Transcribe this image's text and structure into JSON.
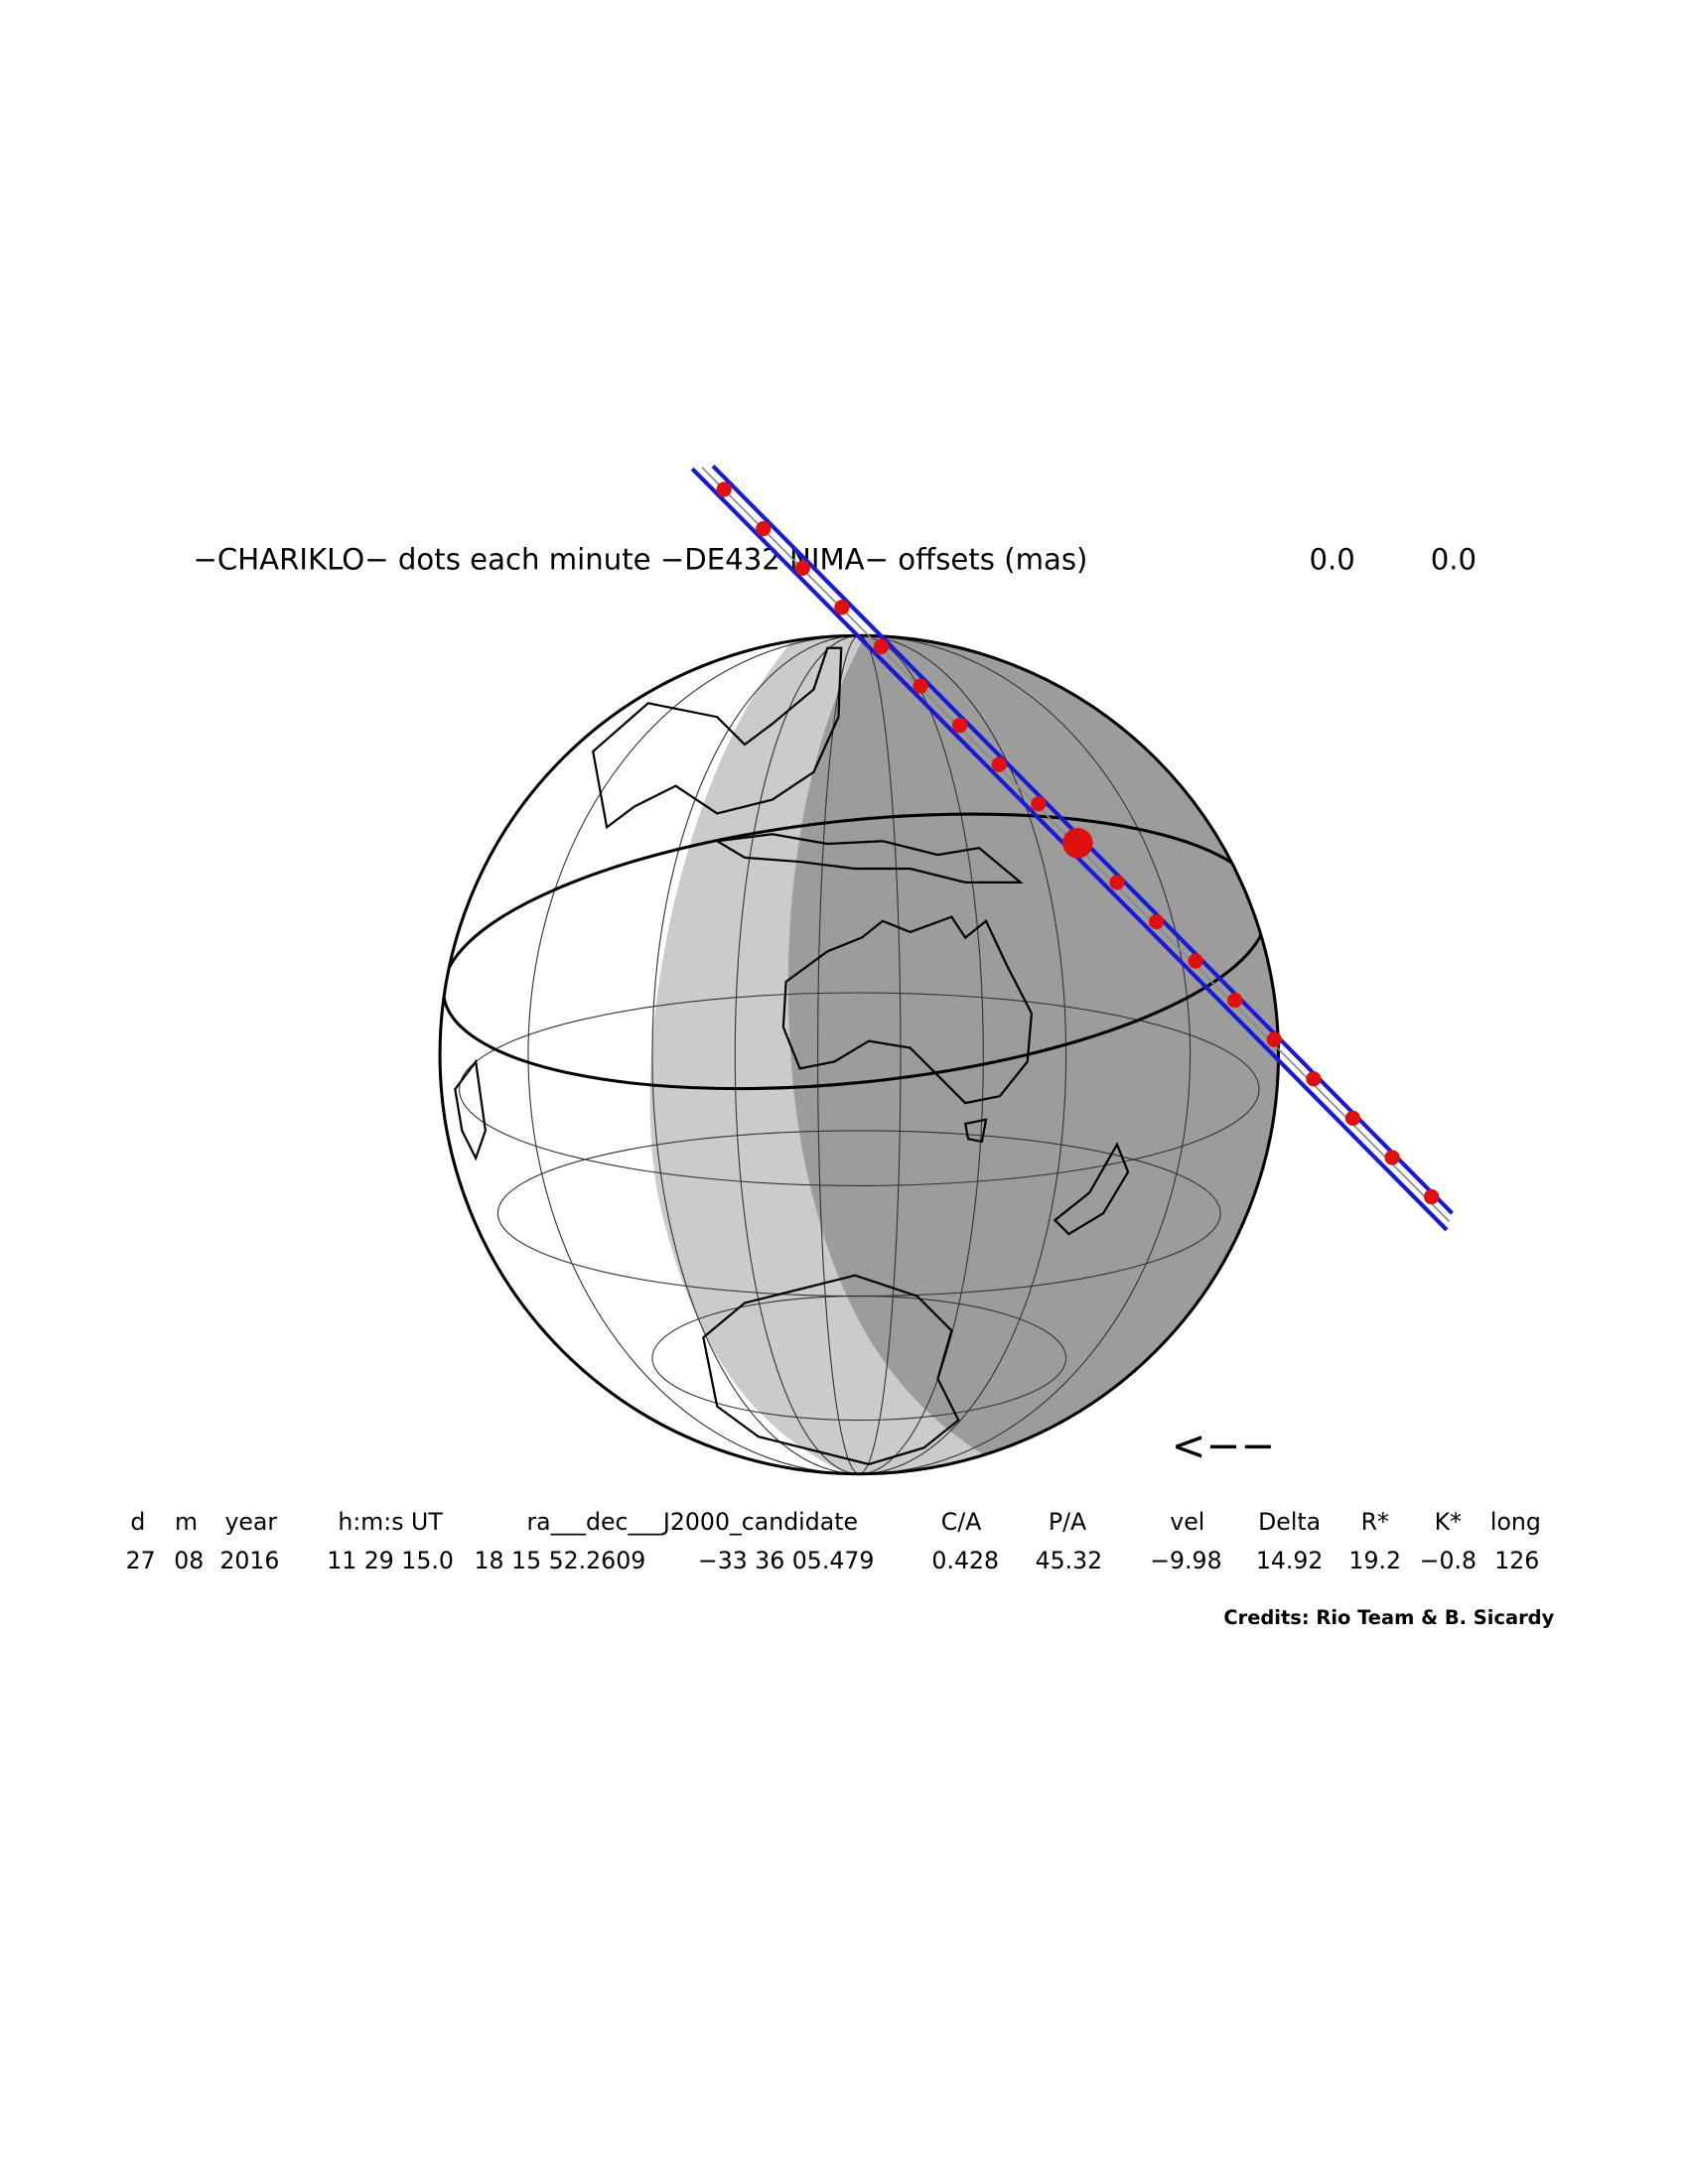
{
  "title": "−CHARIKLO− dots each minute −DE432 NIMA− offsets (mas)",
  "offsets": [
    "0.0",
    "0.0"
  ],
  "table": {
    "headers": [
      "d",
      "m",
      "year",
      "h:m:s UT",
      "ra___dec___J2000_candidate",
      "C/A",
      "P/A",
      "vel",
      "Delta",
      "R*",
      "K*",
      "long"
    ],
    "values": [
      "27",
      "08",
      "2016",
      "11 29 15.0",
      "18 15 52.2609",
      "−33 36 05.479",
      "0.428",
      "45.32",
      "−9.98",
      "14.92",
      "19.2",
      "−0.8",
      "126"
    ]
  },
  "direction_arrow": "<−−",
  "credits": "Credits: Rio Team & B. Sicardy"
}
